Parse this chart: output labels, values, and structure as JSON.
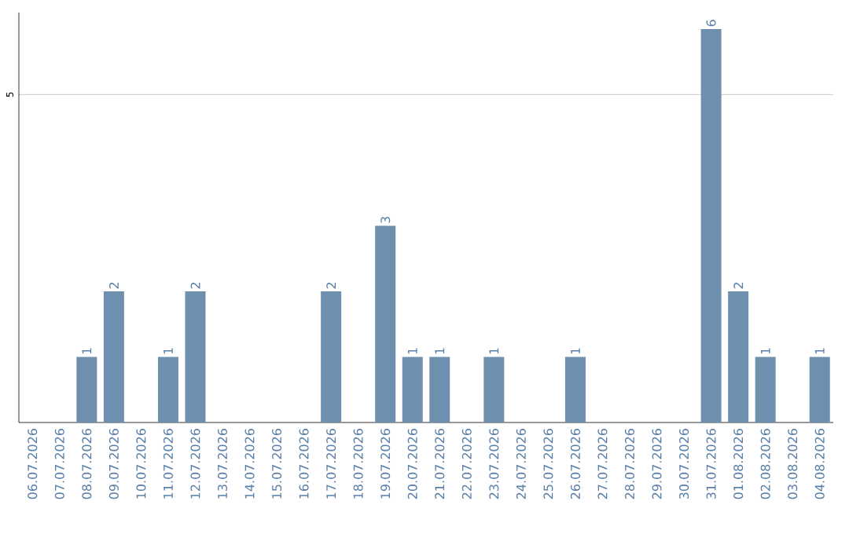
{
  "chart_data": {
    "type": "bar",
    "categories": [
      "06.07.2026",
      "07.07.2026",
      "08.07.2026",
      "09.07.2026",
      "10.07.2026",
      "11.07.2026",
      "12.07.2026",
      "13.07.2026",
      "14.07.2026",
      "15.07.2026",
      "16.07.2026",
      "17.07.2026",
      "18.07.2026",
      "19.07.2026",
      "20.07.2026",
      "21.07.2026",
      "22.07.2026",
      "23.07.2026",
      "24.07.2026",
      "25.07.2026",
      "26.07.2026",
      "27.07.2026",
      "28.07.2026",
      "29.07.2026",
      "30.07.2026",
      "31.07.2026",
      "01.08.2026",
      "02.08.2026",
      "03.08.2026",
      "04.08.2026"
    ],
    "values": [
      0,
      0,
      1,
      2,
      0,
      1,
      2,
      0,
      0,
      0,
      0,
      2,
      0,
      3,
      1,
      1,
      0,
      1,
      0,
      0,
      1,
      0,
      0,
      0,
      0,
      6,
      2,
      1,
      0,
      1
    ],
    "value_labels": [
      null,
      null,
      "1",
      "2",
      null,
      "1",
      "2",
      null,
      null,
      null,
      null,
      "2",
      null,
      "3",
      "1",
      "1",
      null,
      "1",
      null,
      null,
      "1",
      null,
      null,
      null,
      null,
      "6",
      "2",
      "1",
      null,
      "1"
    ],
    "color": "#6e8fae",
    "ylim": [
      0,
      6.25
    ],
    "yticks": [
      5
    ],
    "grid": "y"
  }
}
